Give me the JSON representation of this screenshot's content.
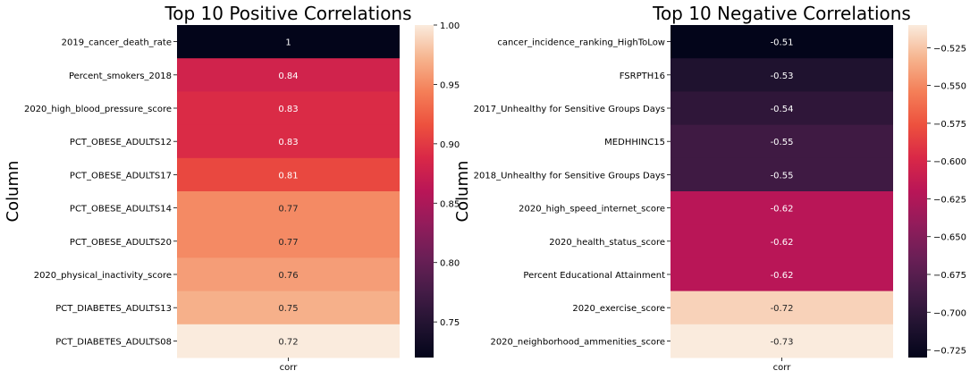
{
  "chart_data": [
    {
      "type": "heatmap",
      "title": "Top 10 Positive Correlations",
      "ylabel": "Column",
      "xlabel": "",
      "x_categories": [
        "corr"
      ],
      "rows": [
        {
          "label": "2019_cancer_death_rate",
          "value": 1.0,
          "text": "1"
        },
        {
          "label": "Percent_smokers_2018",
          "value": 0.84,
          "text": "0.84"
        },
        {
          "label": "2020_high_blood_pressure_score",
          "value": 0.83,
          "text": "0.83"
        },
        {
          "label": "PCT_OBESE_ADULTS12",
          "value": 0.83,
          "text": "0.83"
        },
        {
          "label": "PCT_OBESE_ADULTS17",
          "value": 0.81,
          "text": "0.81"
        },
        {
          "label": "PCT_OBESE_ADULTS14",
          "value": 0.77,
          "text": "0.77"
        },
        {
          "label": "PCT_OBESE_ADULTS20",
          "value": 0.77,
          "text": "0.77"
        },
        {
          "label": "2020_physical_inactivity_score",
          "value": 0.76,
          "text": "0.76"
        },
        {
          "label": "PCT_DIABETES_ADULTS13",
          "value": 0.75,
          "text": "0.75"
        },
        {
          "label": "PCT_DIABETES_ADULTS08",
          "value": 0.72,
          "text": "0.72"
        }
      ],
      "colorbar": {
        "range": [
          0.72,
          1.0
        ],
        "ticks": [
          0.75,
          0.8,
          0.85,
          0.9,
          0.95,
          1.0
        ],
        "tick_labels": [
          "0.75",
          "0.80",
          "0.85",
          "0.90",
          "0.95",
          "1.00"
        ]
      },
      "colormap": "rocket"
    },
    {
      "type": "heatmap",
      "title": "Top 10 Negative Correlations",
      "ylabel": "Column",
      "xlabel": "",
      "x_categories": [
        "corr"
      ],
      "rows": [
        {
          "label": "cancer_incidence_ranking_HighToLow",
          "value": -0.51,
          "text": "-0.51"
        },
        {
          "label": "FSRPTH16",
          "value": -0.53,
          "text": "-0.53"
        },
        {
          "label": "2017_Unhealthy for Sensitive Groups Days",
          "value": -0.54,
          "text": "-0.54"
        },
        {
          "label": "MEDHHINC15",
          "value": -0.55,
          "text": "-0.55"
        },
        {
          "label": "2018_Unhealthy for Sensitive Groups Days",
          "value": -0.55,
          "text": "-0.55"
        },
        {
          "label": "2020_high_speed_internet_score",
          "value": -0.62,
          "text": "-0.62"
        },
        {
          "label": "2020_health_status_score",
          "value": -0.62,
          "text": "-0.62"
        },
        {
          "label": "Percent Educational Attainment",
          "value": -0.62,
          "text": "-0.62"
        },
        {
          "label": "2020_exercise_score",
          "value": -0.72,
          "text": "-0.72"
        },
        {
          "label": "2020_neighborhood_ammenities_score",
          "value": -0.73,
          "text": "-0.73"
        }
      ],
      "colorbar": {
        "range": [
          -0.73,
          -0.51
        ],
        "ticks": [
          -0.525,
          -0.55,
          -0.575,
          -0.6,
          -0.625,
          -0.65,
          -0.675,
          -0.7,
          -0.725
        ],
        "tick_labels": [
          "−0.525",
          "−0.550",
          "−0.575",
          "−0.600",
          "−0.625",
          "−0.650",
          "−0.675",
          "−0.700",
          "−0.725"
        ]
      },
      "colormap": "rocket"
    }
  ]
}
